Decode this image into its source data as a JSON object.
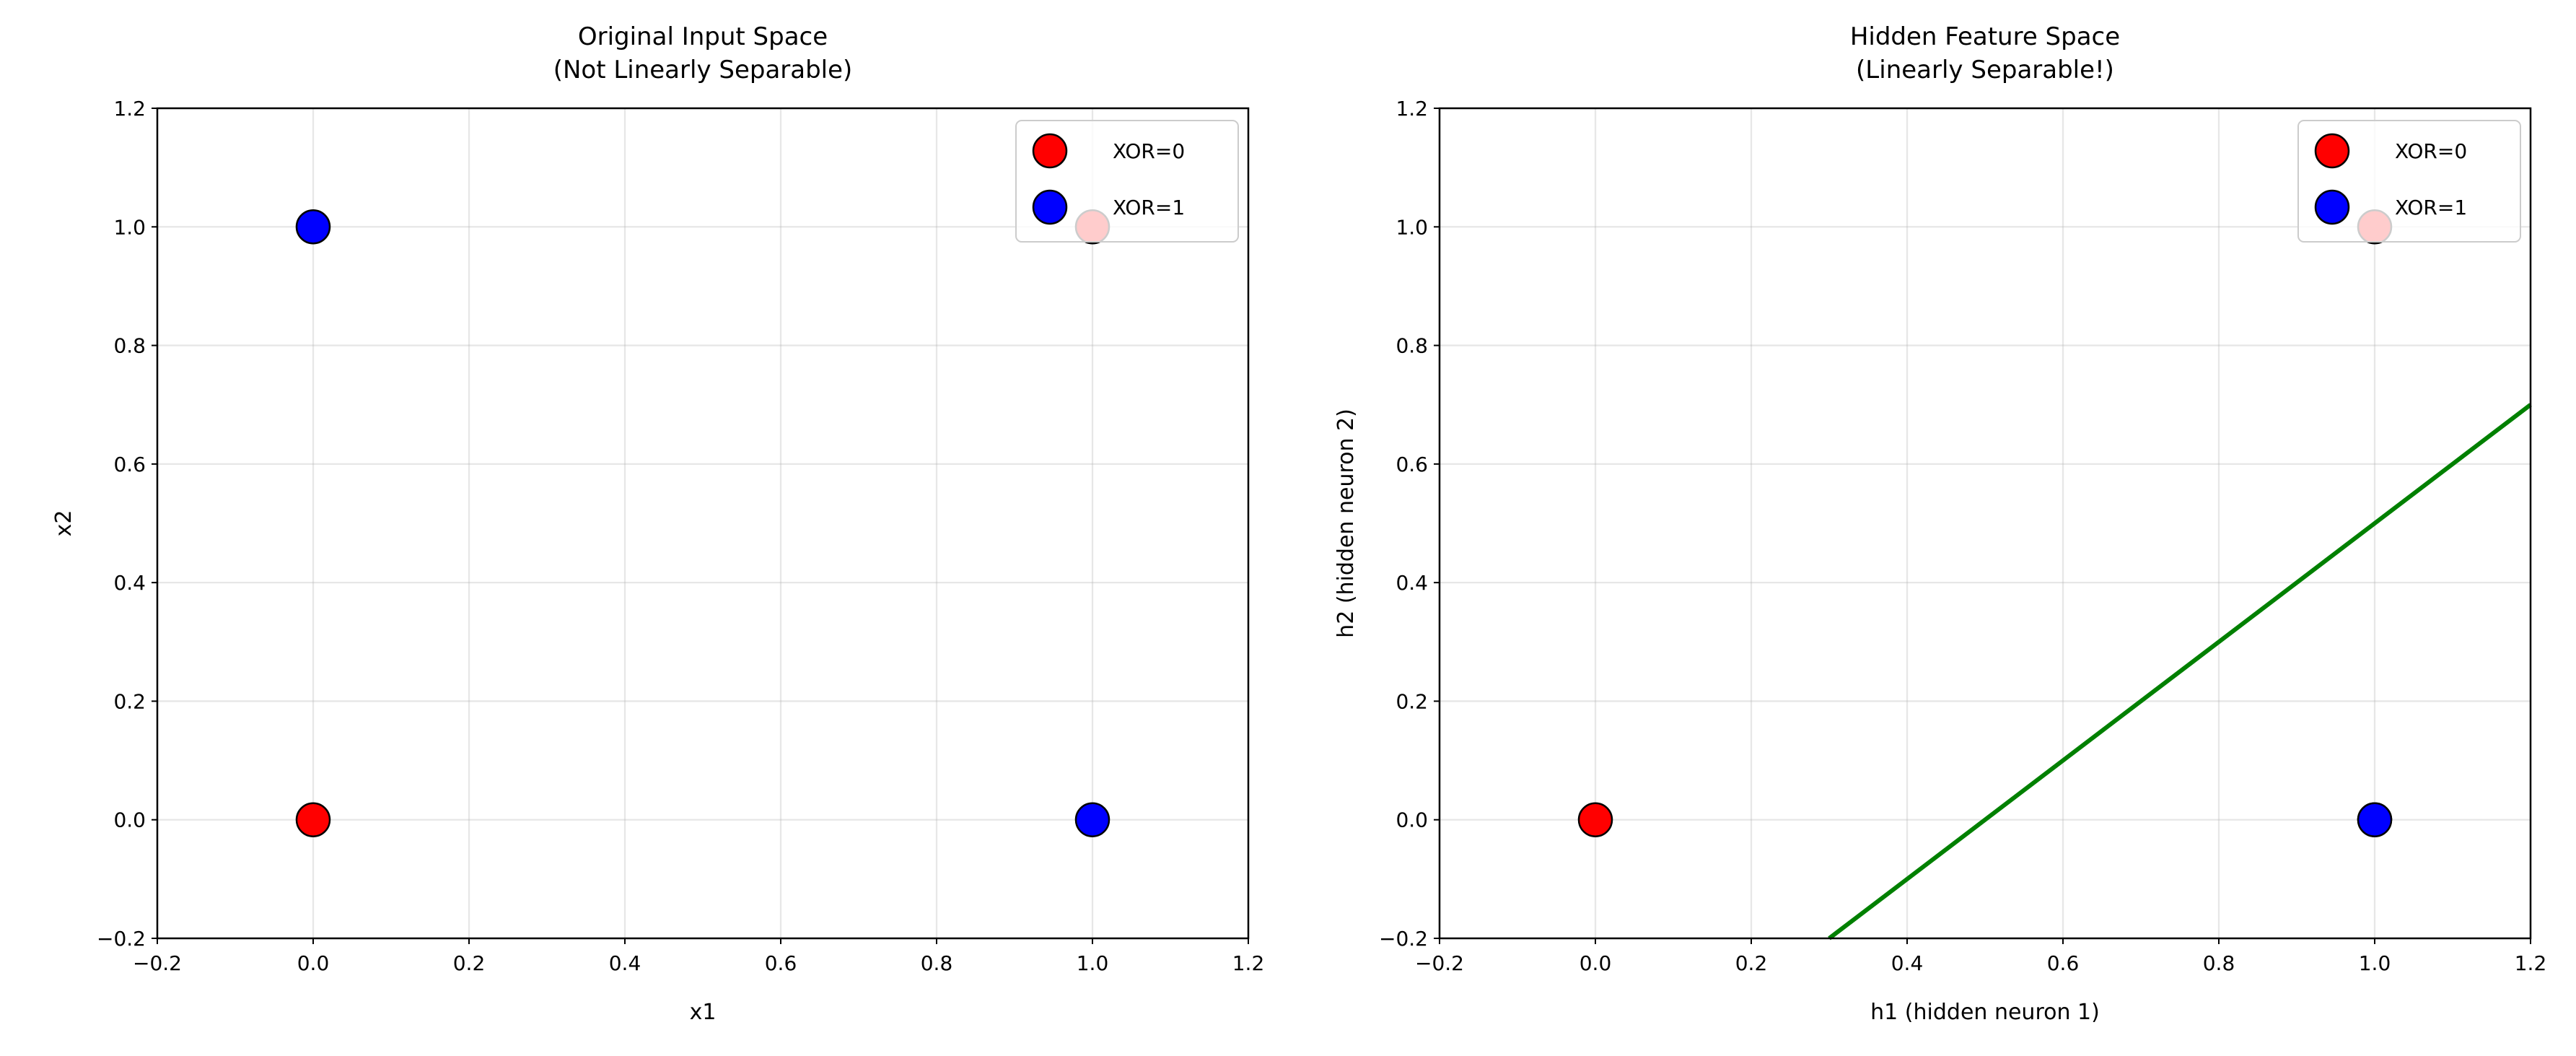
{
  "chart_data": [
    {
      "type": "scatter",
      "title": "Original Input Space\n(Not Linearly Separable)",
      "title_lines": [
        "Original Input Space",
        "(Not Linearly Separable)"
      ],
      "xlabel": "x1",
      "ylabel": "x2",
      "xlim": [
        -0.2,
        1.2
      ],
      "ylim": [
        -0.2,
        1.2
      ],
      "xticks": [
        "−0.2",
        "0.0",
        "0.2",
        "0.4",
        "0.6",
        "0.8",
        "1.0",
        "1.2"
      ],
      "yticks": [
        "−0.2",
        "0.0",
        "0.2",
        "0.4",
        "0.6",
        "0.8",
        "1.0",
        "1.2"
      ],
      "grid": true,
      "legend_position": "top-right",
      "series": [
        {
          "name": "XOR=0",
          "color": "#ff0000",
          "points": [
            [
              0,
              0
            ],
            [
              1,
              1
            ]
          ]
        },
        {
          "name": "XOR=1",
          "color": "#0000ff",
          "points": [
            [
              0,
              1
            ],
            [
              1,
              0
            ]
          ]
        }
      ],
      "lines": []
    },
    {
      "type": "scatter",
      "title": "Hidden Feature Space\n(Linearly Separable!)",
      "title_lines": [
        "Hidden Feature Space",
        "(Linearly Separable!)"
      ],
      "xlabel": "h1 (hidden neuron 1)",
      "ylabel": "h2 (hidden neuron 2)",
      "xlim": [
        -0.2,
        1.2
      ],
      "ylim": [
        -0.2,
        1.2
      ],
      "xticks": [
        "−0.2",
        "0.0",
        "0.2",
        "0.4",
        "0.6",
        "0.8",
        "1.0",
        "1.2"
      ],
      "yticks": [
        "−0.2",
        "0.0",
        "0.2",
        "0.4",
        "0.6",
        "0.8",
        "1.0",
        "1.2"
      ],
      "grid": true,
      "legend_position": "top-right",
      "series": [
        {
          "name": "XOR=0",
          "color": "#ff0000",
          "points": [
            [
              0,
              0
            ],
            [
              1,
              1
            ]
          ]
        },
        {
          "name": "XOR=1",
          "color": "#0000ff",
          "points": [
            [
              1,
              0
            ],
            [
              1,
              0
            ]
          ]
        }
      ],
      "lines": [
        {
          "color": "#008000",
          "points": [
            [
              0.3,
              -0.2
            ],
            [
              1.2,
              0.7
            ]
          ]
        }
      ]
    }
  ]
}
